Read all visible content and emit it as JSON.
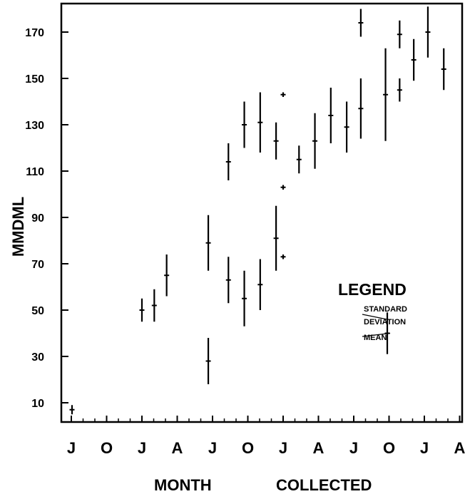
{
  "chart_data": {
    "type": "scatter",
    "xlabel_parts": [
      "MONTH",
      "COLLECTED"
    ],
    "ylabel": "MMDML",
    "x_tick_labels": [
      "J",
      "O",
      "J",
      "A",
      "J",
      "O",
      "J",
      "A",
      "J",
      "O",
      "J",
      "A"
    ],
    "y_ticks": [
      10,
      30,
      50,
      70,
      90,
      110,
      130,
      150,
      170
    ],
    "ylim": [
      2,
      180
    ],
    "xlim": [
      0,
      11
    ],
    "grid": false,
    "legend": {
      "title": "LEGEND",
      "std_label_1": "STANDARD",
      "std_label_2": "DEVIATION",
      "mean_label": "MEAN",
      "sample_mean": 40,
      "sample_sd": 9,
      "sample_x": 8.95
    },
    "series": [
      {
        "points": [
          {
            "x": 0.02,
            "mean": 7,
            "sd": 2
          },
          {
            "x": 2.0,
            "mean": 50,
            "sd": 5
          },
          {
            "x": 2.35,
            "mean": 52,
            "sd": 7
          },
          {
            "x": 2.7,
            "mean": 65,
            "sd": 9
          },
          {
            "x": 3.88,
            "mean": 79,
            "sd": 12
          },
          {
            "x": 3.88,
            "mean": 28,
            "sd": 10
          },
          {
            "x": 4.45,
            "mean": 114,
            "sd": 8
          },
          {
            "x": 4.45,
            "mean": 63,
            "sd": 10
          },
          {
            "x": 4.9,
            "mean": 130,
            "sd": 10
          },
          {
            "x": 4.9,
            "mean": 55,
            "sd": 12
          },
          {
            "x": 5.35,
            "mean": 131,
            "sd": 13
          },
          {
            "x": 5.35,
            "mean": 61,
            "sd": 11
          },
          {
            "x": 5.8,
            "mean": 123,
            "sd": 8
          },
          {
            "x": 5.8,
            "mean": 81,
            "sd": 14
          },
          {
            "x": 6.0,
            "mean": 143,
            "sd": 1
          },
          {
            "x": 6.0,
            "mean": 103,
            "sd": 1
          },
          {
            "x": 6.0,
            "mean": 73,
            "sd": 1
          },
          {
            "x": 6.45,
            "mean": 115,
            "sd": 6
          },
          {
            "x": 6.9,
            "mean": 123,
            "sd": 12
          },
          {
            "x": 7.35,
            "mean": 134,
            "sd": 12
          },
          {
            "x": 7.8,
            "mean": 129,
            "sd": 11
          },
          {
            "x": 8.2,
            "mean": 137,
            "sd": 13
          },
          {
            "x": 8.2,
            "mean": 174,
            "sd": 6
          },
          {
            "x": 8.9,
            "mean": 143,
            "sd": 20
          },
          {
            "x": 9.3,
            "mean": 169,
            "sd": 6
          },
          {
            "x": 9.3,
            "mean": 145,
            "sd": 5
          },
          {
            "x": 9.7,
            "mean": 158,
            "sd": 9
          },
          {
            "x": 10.1,
            "mean": 170,
            "sd": 11
          },
          {
            "x": 10.55,
            "mean": 154,
            "sd": 9
          }
        ]
      }
    ]
  }
}
